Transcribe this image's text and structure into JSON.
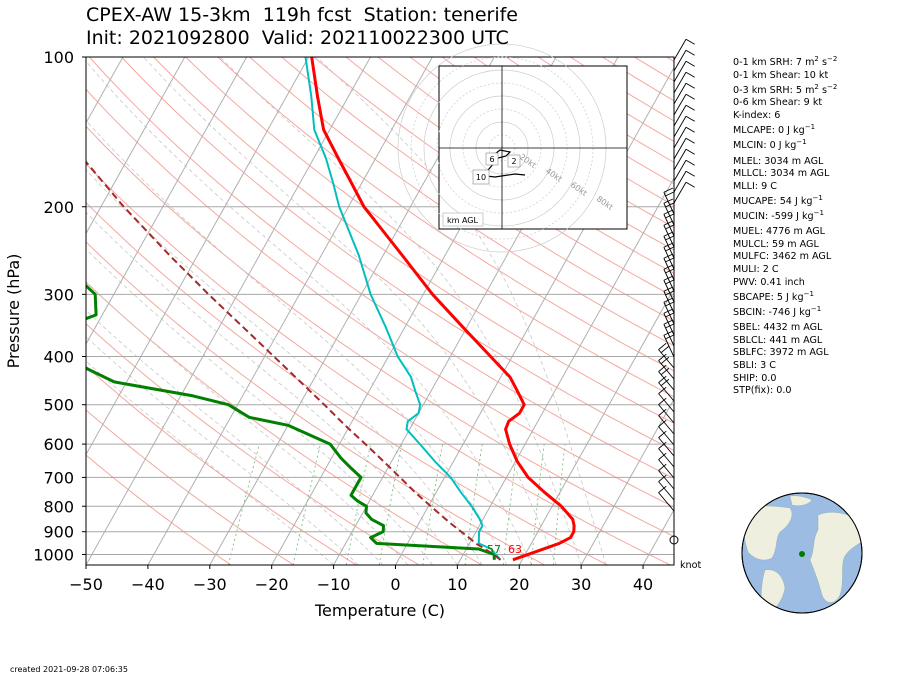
{
  "title": {
    "line1": "CPEX-AW 15-3km  119h fcst  Station: tenerife",
    "line2": "Init: 2021092800  Valid: 202110022300 UTC"
  },
  "footer": {
    "created": "created 2021-09-28 07:06:35"
  },
  "wind_unit": "knot",
  "hodograph": {
    "label": "km AGL",
    "ring_labels": [
      "20kt",
      "40kt",
      "60kt",
      "80kt"
    ],
    "height_labels": [
      "6",
      "2",
      "10"
    ]
  },
  "stats": [
    {
      "label": "0-1 km SRH: 7 m",
      "sup": "2",
      "mid": "s",
      "sup2": "−2",
      "gap": false
    },
    {
      "label": "0-1 km Shear: 10 kt",
      "gap": false
    },
    {
      "label": "0-3 km SRH: 5 m",
      "sup": "2",
      "mid": "s",
      "sup2": "−2",
      "gap": true
    },
    {
      "label": "0-6 km Shear: 9 kt",
      "gap": false
    },
    {
      "label": "K-index: 6",
      "gap": false
    },
    {
      "label": "MLCAPE: 0 J kg",
      "sup": "−1",
      "gap": true
    },
    {
      "label": "MLCIN: 0 J kg",
      "sup": "−1",
      "gap": true
    },
    {
      "label": "MLEL: 3034 m AGL",
      "gap": true
    },
    {
      "label": "MLLCL: 3034 m AGL",
      "gap": false
    },
    {
      "label": "MLLI: 9 C",
      "gap": false
    },
    {
      "label": "MUCAPE: 54 J kg",
      "sup": "−1",
      "gap": true
    },
    {
      "label": "MUCIN: -599 J kg",
      "sup": "−1",
      "gap": true
    },
    {
      "label": "MUEL: 4776 m AGL",
      "gap": true
    },
    {
      "label": "MULCL: 59 m AGL",
      "gap": false
    },
    {
      "label": "MULFC: 3462 m AGL",
      "gap": false
    },
    {
      "label": "MULI: 2 C",
      "gap": false
    },
    {
      "label": "PWV: 0.41 inch",
      "gap": false
    },
    {
      "label": "SBCAPE: 5 J kg",
      "sup": "−1",
      "gap": true
    },
    {
      "label": "SBCIN: -746 J kg",
      "sup": "−1",
      "gap": true
    },
    {
      "label": "SBEL: 4432 m AGL",
      "gap": true
    },
    {
      "label": "SBLCL: 441 m AGL",
      "gap": false
    },
    {
      "label": "SBLFC: 3972 m AGL",
      "gap": false
    },
    {
      "label": "SBLI: 3 C",
      "gap": false
    },
    {
      "label": "SHIP: 0.0",
      "gap": false
    },
    {
      "label": "STP(fix): 0.0",
      "gap": false
    }
  ],
  "chart_data": {
    "type": "line",
    "subtype": "skew-T log-p",
    "xlabel": "Temperature (C)",
    "ylabel": "Pressure (hPa)",
    "xlim": [
      -50,
      45
    ],
    "ylim": [
      1050,
      100
    ],
    "y_scale": "log",
    "x_ticks": [
      -50,
      -40,
      -30,
      -20,
      -10,
      0,
      10,
      20,
      30,
      40
    ],
    "y_ticks": [
      100,
      200,
      300,
      400,
      500,
      600,
      700,
      800,
      900,
      1000
    ],
    "grid": true,
    "surface_labels": {
      "dewpoint": "57",
      "temperature": "63"
    },
    "colors": {
      "temperature": "#ff0000",
      "dewpoint": "#008000",
      "wetbulb": "#00bfbf",
      "parcel": "#a52a2a",
      "isotherm": "#b0b0b0",
      "dry_adiabat": "#f4a8a0",
      "moist_adiabat": "#c8c8c8",
      "mixing_ratio": "#7fbf7f"
    },
    "series": [
      {
        "name": "temperature",
        "points": [
          [
            1025,
            18.5
          ],
          [
            950,
            24.5
          ],
          [
            925,
            25.8
          ],
          [
            900,
            25.8
          ],
          [
            875,
            25.3
          ],
          [
            850,
            24.5
          ],
          [
            800,
            21.5
          ],
          [
            750,
            17.5
          ],
          [
            700,
            13.5
          ],
          [
            650,
            10.3
          ],
          [
            600,
            7.5
          ],
          [
            560,
            5.5
          ],
          [
            540,
            5.3
          ],
          [
            520,
            6.3
          ],
          [
            500,
            6.3
          ],
          [
            470,
            4.0
          ],
          [
            440,
            1.5
          ],
          [
            400,
            -3.5
          ],
          [
            350,
            -10.5
          ],
          [
            300,
            -18.5
          ],
          [
            250,
            -27.0
          ],
          [
            200,
            -37.5
          ],
          [
            180,
            -41.5
          ],
          [
            160,
            -46.0
          ],
          [
            140,
            -51.0
          ],
          [
            120,
            -55.0
          ],
          [
            100,
            -59.5
          ]
        ]
      },
      {
        "name": "dewpoint",
        "points": [
          [
            1025,
            15.5
          ],
          [
            1000,
            15.0
          ],
          [
            975,
            12.0
          ],
          [
            950,
            -5.0
          ],
          [
            925,
            -6.5
          ],
          [
            900,
            -5.0
          ],
          [
            875,
            -5.5
          ],
          [
            850,
            -8.0
          ],
          [
            825,
            -9.5
          ],
          [
            800,
            -10.0
          ],
          [
            780,
            -12.0
          ],
          [
            760,
            -13.5
          ],
          [
            730,
            -13.5
          ],
          [
            700,
            -13.5
          ],
          [
            670,
            -16.0
          ],
          [
            640,
            -18.5
          ],
          [
            600,
            -21.5
          ],
          [
            550,
            -30.0
          ],
          [
            530,
            -37.0
          ],
          [
            500,
            -41.5
          ],
          [
            480,
            -48.0
          ],
          [
            450,
            -62.0
          ],
          [
            410,
            -70.5
          ],
          [
            400,
            -74.0
          ],
          [
            370,
            -77.0
          ],
          [
            350,
            -75.5
          ],
          [
            330,
            -71.0
          ],
          [
            300,
            -73.0
          ],
          [
            270,
            -79.0
          ],
          [
            250,
            -83.5
          ],
          [
            230,
            -88.5
          ],
          [
            200,
            -90.0
          ],
          [
            190,
            -91.5
          ],
          [
            180,
            -94.5
          ],
          [
            160,
            -99.0
          ],
          [
            140,
            -104.0
          ],
          [
            120,
            -110.0
          ],
          [
            100,
            -114.0
          ]
        ]
      },
      {
        "name": "wetbulb",
        "points": [
          [
            1025,
            16.5
          ],
          [
            975,
            14.0
          ],
          [
            950,
            11.5
          ],
          [
            925,
            11.0
          ],
          [
            900,
            10.5
          ],
          [
            875,
            10.5
          ],
          [
            850,
            9.5
          ],
          [
            800,
            7.0
          ],
          [
            750,
            4.0
          ],
          [
            700,
            1.0
          ],
          [
            650,
            -3.0
          ],
          [
            600,
            -7.0
          ],
          [
            560,
            -10.5
          ],
          [
            540,
            -11.0
          ],
          [
            520,
            -10.0
          ],
          [
            500,
            -10.5
          ],
          [
            470,
            -12.5
          ],
          [
            440,
            -14.5
          ],
          [
            400,
            -18.5
          ],
          [
            350,
            -23.0
          ],
          [
            300,
            -28.5
          ],
          [
            250,
            -34.0
          ],
          [
            200,
            -41.5
          ],
          [
            180,
            -44.5
          ],
          [
            160,
            -48.0
          ],
          [
            140,
            -52.5
          ],
          [
            120,
            -56.0
          ],
          [
            100,
            -60.5
          ]
        ]
      },
      {
        "name": "parcel",
        "points": [
          [
            1025,
            16.5
          ],
          [
            1000,
            14.9
          ],
          [
            975,
            13.0
          ],
          [
            950,
            11.0
          ],
          [
            925,
            9.4
          ],
          [
            900,
            7.6
          ],
          [
            875,
            5.8
          ],
          [
            850,
            4.0
          ],
          [
            800,
            0.4
          ],
          [
            750,
            -3.4
          ],
          [
            700,
            -7.2
          ],
          [
            650,
            -11.3
          ],
          [
            600,
            -15.8
          ],
          [
            550,
            -20.8
          ],
          [
            500,
            -26.0
          ],
          [
            450,
            -31.9
          ],
          [
            400,
            -38.5
          ],
          [
            350,
            -46.0
          ],
          [
            300,
            -54.7
          ],
          [
            250,
            -64.6
          ],
          [
            200,
            -76.3
          ],
          [
            150,
            -90.4
          ],
          [
            100,
            -109.0
          ]
        ]
      }
    ]
  }
}
